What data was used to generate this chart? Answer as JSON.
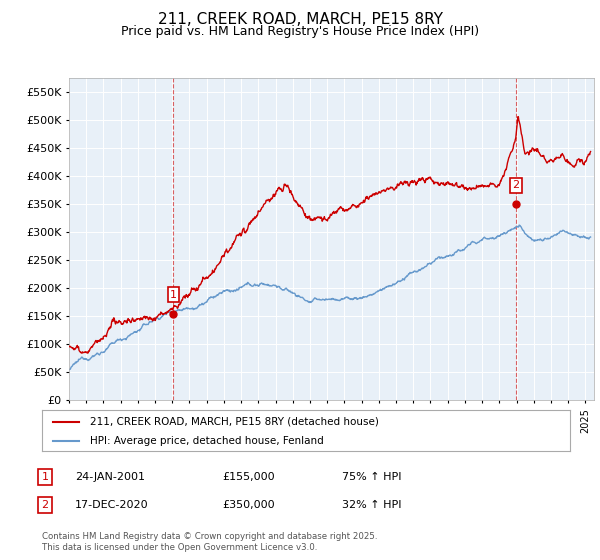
{
  "title": "211, CREEK ROAD, MARCH, PE15 8RY",
  "subtitle": "Price paid vs. HM Land Registry's House Price Index (HPI)",
  "ylabel_ticks": [
    0,
    50000,
    100000,
    150000,
    200000,
    250000,
    300000,
    350000,
    400000,
    450000,
    500000,
    550000
  ],
  "ylim": [
    0,
    575000
  ],
  "xlim_start": 1995.0,
  "xlim_end": 2025.5,
  "sale1_x": 2001.07,
  "sale1_y": 155000,
  "sale2_x": 2020.96,
  "sale2_y": 350000,
  "red_color": "#cc0000",
  "blue_color": "#6699cc",
  "plot_bg_color": "#e8f0f8",
  "legend_label_red": "211, CREEK ROAD, MARCH, PE15 8RY (detached house)",
  "legend_label_blue": "HPI: Average price, detached house, Fenland",
  "sale1_label": "1",
  "sale2_label": "2",
  "table_row1": [
    "1",
    "24-JAN-2001",
    "£155,000",
    "75% ↑ HPI"
  ],
  "table_row2": [
    "2",
    "17-DEC-2020",
    "£350,000",
    "32% ↑ HPI"
  ],
  "footnote": "Contains HM Land Registry data © Crown copyright and database right 2025.\nThis data is licensed under the Open Government Licence v3.0.",
  "bg_color": "#ffffff",
  "grid_color": "#ffffff"
}
